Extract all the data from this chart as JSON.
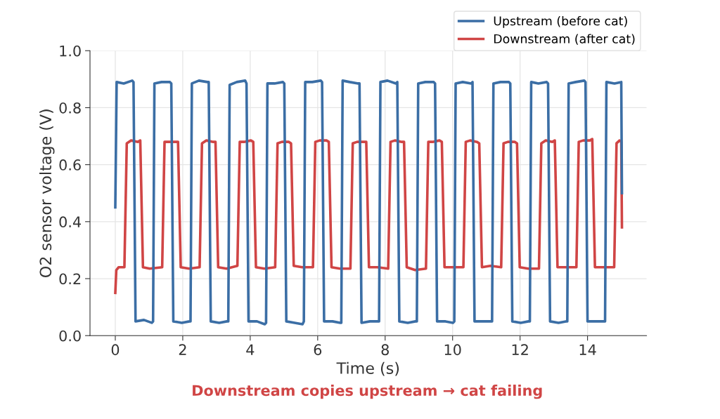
{
  "chart_data": {
    "type": "line",
    "xlabel": "Time (s)",
    "ylabel": "O2 sensor voltage (V)",
    "xlim": [
      -0.75,
      15.75
    ],
    "ylim": [
      0,
      1.0
    ],
    "xticks": [
      0,
      2,
      4,
      6,
      8,
      10,
      12,
      14
    ],
    "yticks": [
      {
        "value": 0,
        "label": "0.0"
      },
      0.2,
      0.4,
      0.6,
      0.8,
      {
        "value": 1.0,
        "label": "1.0"
      }
    ],
    "grid": true,
    "legend": "top right",
    "line_style": "solid",
    "marker": "none",
    "annotations": [
      "Downstream copies upstream → cat failing"
    ],
    "series": [
      {
        "name": "Upstream (before cat)",
        "color": "#3b6ea5",
        "x": [
          0,
          0.04,
          0.25,
          0.5,
          0.54,
          0.6,
          0.85,
          1.08,
          1.12,
          1.16,
          1.37,
          1.62,
          1.66,
          1.72,
          1.97,
          2.2,
          2.23,
          2.27,
          2.48,
          2.73,
          2.77,
          2.83,
          3.08,
          3.31,
          3.35,
          3.39,
          3.6,
          3.85,
          3.89,
          3.95,
          4.2,
          4.43,
          4.47,
          4.51,
          4.72,
          4.97,
          5.01,
          5.07,
          5.32,
          5.55,
          5.59,
          5.63,
          5.84,
          6.09,
          6.13,
          6.19,
          6.44,
          6.67,
          6.7,
          6.74,
          6.95,
          7.2,
          7.24,
          7.3,
          7.55,
          7.78,
          7.82,
          7.86,
          8.07,
          8.32,
          8.36,
          8.42,
          8.67,
          8.9,
          8.94,
          8.98,
          9.19,
          9.44,
          9.48,
          9.54,
          9.79,
          10.01,
          10.05,
          10.09,
          10.3,
          10.55,
          10.59,
          10.65,
          10.9,
          11.13,
          11.17,
          11.21,
          11.42,
          11.67,
          11.71,
          11.77,
          12.02,
          12.25,
          12.29,
          12.33,
          12.54,
          12.79,
          12.83,
          12.89,
          13.14,
          13.36,
          13.4,
          13.44,
          13.65,
          13.9,
          13.94,
          14.0,
          14.25,
          14.48,
          14.52,
          14.56,
          14.8,
          15.0,
          15.02
        ],
        "values": [
          0.45,
          0.89,
          0.885,
          0.895,
          0.89,
          0.05,
          0.055,
          0.045,
          0.05,
          0.885,
          0.89,
          0.89,
          0.885,
          0.05,
          0.045,
          0.05,
          0.05,
          0.885,
          0.895,
          0.89,
          0.89,
          0.05,
          0.045,
          0.05,
          0.05,
          0.88,
          0.89,
          0.895,
          0.885,
          0.05,
          0.05,
          0.04,
          0.045,
          0.885,
          0.885,
          0.89,
          0.885,
          0.05,
          0.045,
          0.04,
          0.05,
          0.89,
          0.89,
          0.895,
          0.89,
          0.05,
          0.05,
          0.045,
          0.045,
          0.895,
          0.89,
          0.885,
          0.885,
          0.045,
          0.05,
          0.05,
          0.05,
          0.89,
          0.895,
          0.885,
          0.89,
          0.05,
          0.045,
          0.05,
          0.05,
          0.885,
          0.89,
          0.89,
          0.885,
          0.05,
          0.05,
          0.045,
          0.05,
          0.885,
          0.89,
          0.885,
          0.89,
          0.05,
          0.05,
          0.05,
          0.05,
          0.885,
          0.89,
          0.89,
          0.885,
          0.05,
          0.045,
          0.05,
          0.05,
          0.89,
          0.885,
          0.89,
          0.885,
          0.05,
          0.045,
          0.05,
          0.05,
          0.885,
          0.89,
          0.895,
          0.89,
          0.05,
          0.05,
          0.05,
          0.05,
          0.89,
          0.885,
          0.89,
          0.5
        ]
      },
      {
        "name": "Downstream (after cat)",
        "color": "#d04545",
        "x": [
          0,
          0.03,
          0.1,
          0.27,
          0.34,
          0.47,
          0.67,
          0.74,
          0.82,
          1.02,
          1.39,
          1.46,
          1.59,
          1.79,
          1.86,
          1.94,
          2.19,
          2.5,
          2.57,
          2.7,
          2.9,
          2.97,
          3.05,
          3.3,
          3.62,
          3.69,
          3.82,
          4.02,
          4.09,
          4.17,
          4.42,
          4.74,
          4.81,
          4.94,
          5.14,
          5.21,
          5.29,
          5.54,
          5.86,
          5.93,
          6.06,
          6.26,
          6.33,
          6.41,
          6.66,
          6.97,
          7.04,
          7.17,
          7.37,
          7.44,
          7.52,
          7.77,
          8.09,
          8.16,
          8.29,
          8.49,
          8.56,
          8.64,
          8.89,
          9.21,
          9.28,
          9.41,
          9.61,
          9.68,
          9.76,
          10.01,
          10.32,
          10.39,
          10.52,
          10.72,
          10.79,
          10.87,
          11.12,
          11.44,
          11.51,
          11.64,
          11.84,
          11.91,
          11.99,
          12.24,
          12.56,
          12.63,
          12.76,
          12.96,
          13.03,
          13.11,
          13.36,
          13.67,
          13.74,
          13.87,
          14.07,
          14.14,
          14.22,
          14.47,
          14.79,
          14.86,
          14.95,
          15.0,
          15.02
        ],
        "values": [
          0.15,
          0.23,
          0.24,
          0.24,
          0.675,
          0.685,
          0.68,
          0.685,
          0.24,
          0.235,
          0.24,
          0.68,
          0.68,
          0.68,
          0.68,
          0.24,
          0.235,
          0.24,
          0.675,
          0.685,
          0.68,
          0.68,
          0.24,
          0.235,
          0.245,
          0.68,
          0.68,
          0.685,
          0.68,
          0.24,
          0.235,
          0.24,
          0.675,
          0.68,
          0.68,
          0.675,
          0.245,
          0.24,
          0.24,
          0.68,
          0.685,
          0.685,
          0.68,
          0.24,
          0.235,
          0.235,
          0.675,
          0.68,
          0.68,
          0.68,
          0.24,
          0.24,
          0.235,
          0.68,
          0.685,
          0.68,
          0.68,
          0.24,
          0.23,
          0.235,
          0.68,
          0.68,
          0.685,
          0.68,
          0.24,
          0.24,
          0.24,
          0.68,
          0.685,
          0.68,
          0.675,
          0.24,
          0.245,
          0.24,
          0.675,
          0.68,
          0.68,
          0.675,
          0.24,
          0.235,
          0.235,
          0.675,
          0.685,
          0.68,
          0.685,
          0.24,
          0.24,
          0.24,
          0.68,
          0.685,
          0.685,
          0.69,
          0.24,
          0.24,
          0.24,
          0.675,
          0.685,
          0.68,
          0.38
        ]
      }
    ]
  }
}
